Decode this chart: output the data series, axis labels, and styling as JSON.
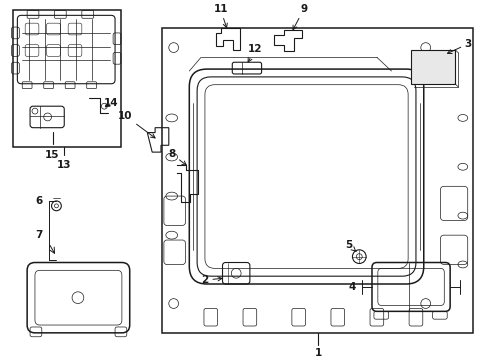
{
  "bg_color": "#ffffff",
  "line_color": "#1a1a1a",
  "fig_width": 4.89,
  "fig_height": 3.6,
  "dpi": 100,
  "font_size": 7.5,
  "font_size_small": 6.5
}
